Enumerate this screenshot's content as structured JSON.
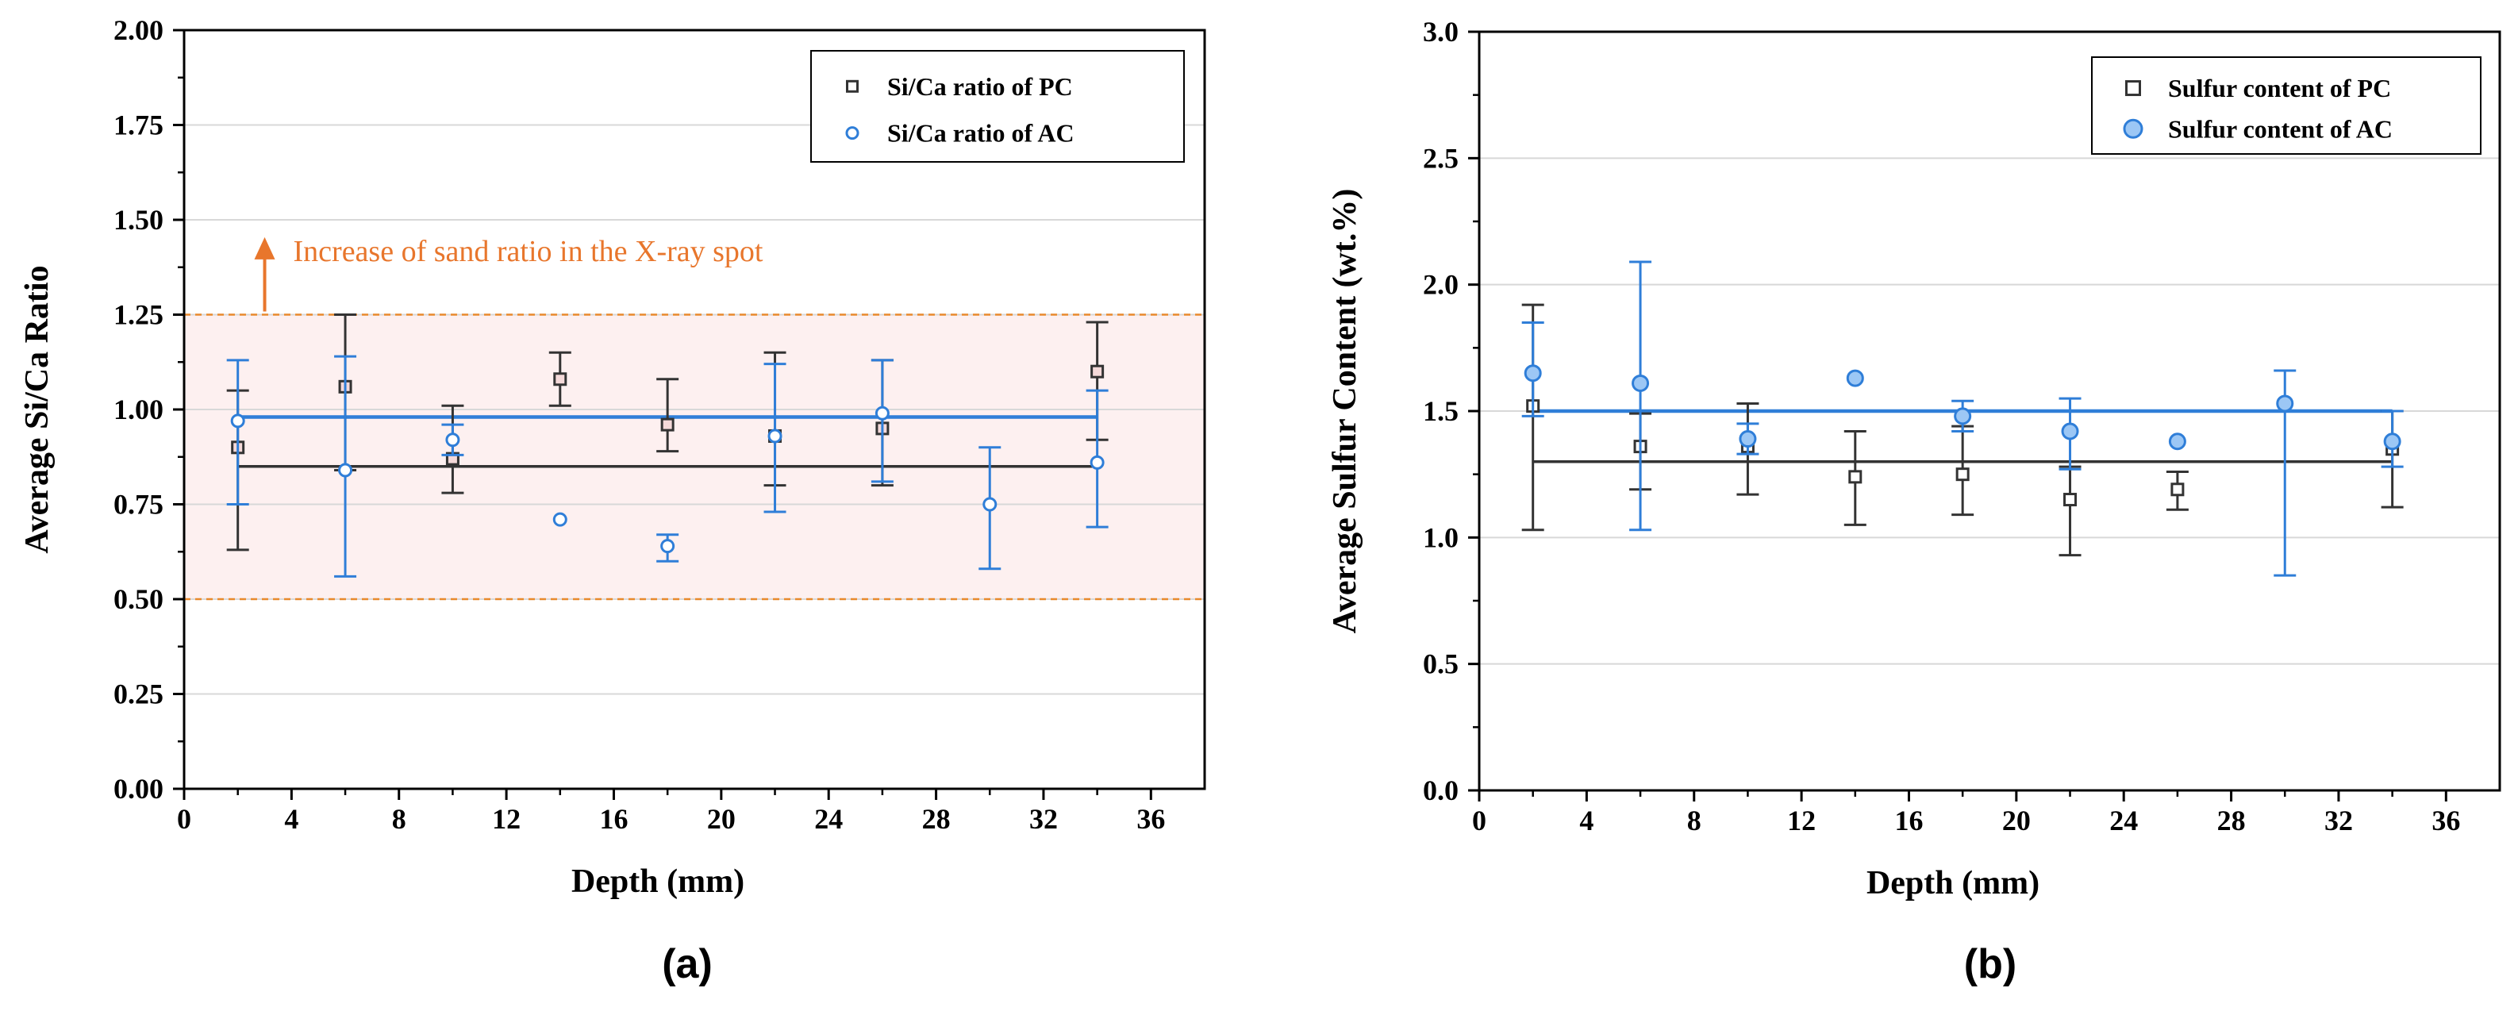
{
  "colors": {
    "pc": "#333333",
    "ac": "#2f7ed8",
    "band_fill": "#fdf0f0",
    "band_line": "#e8892c",
    "annotation": "#e8762c",
    "grid": "#d8d8d8"
  },
  "chart_data": [
    {
      "type": "scatter",
      "panel_label": "(a)",
      "xlabel": "Depth (mm)",
      "ylabel": "Average Si/Ca Ratio",
      "xlim": [
        0,
        38
      ],
      "ylim": [
        0,
        2.0
      ],
      "xticks": [
        0,
        4,
        8,
        12,
        16,
        20,
        24,
        28,
        32,
        36
      ],
      "yticks": [
        0.0,
        0.25,
        0.5,
        0.75,
        1.0,
        1.25,
        1.5,
        1.75,
        2.0
      ],
      "ytick_labels": [
        "0.00",
        "0.25",
        "0.50",
        "0.75",
        "1.00",
        "1.25",
        "1.50",
        "1.75",
        "2.00"
      ],
      "grid": true,
      "legend_position": "top-right",
      "band": {
        "y_low": 0.5,
        "y_high": 1.25
      },
      "annotation": {
        "text": "Increase of sand ratio in the X-ray spot",
        "arrow_x": 3,
        "y_from": 1.25,
        "y_to": 1.45
      },
      "series": [
        {
          "name": "Si/Ca ratio of PC",
          "marker": "square",
          "color_key": "pc",
          "mean_line": 0.85,
          "points": [
            {
              "x": 2,
              "y": 0.9,
              "lo": 0.63,
              "hi": 1.05
            },
            {
              "x": 6,
              "y": 1.06,
              "lo": 0.84,
              "hi": 1.25
            },
            {
              "x": 10,
              "y": 0.87,
              "lo": 0.78,
              "hi": 1.01
            },
            {
              "x": 14,
              "y": 1.08,
              "lo": 1.01,
              "hi": 1.15
            },
            {
              "x": 18,
              "y": 0.96,
              "lo": 0.89,
              "hi": 1.08
            },
            {
              "x": 22,
              "y": 0.93,
              "lo": 0.8,
              "hi": 1.15
            },
            {
              "x": 26,
              "y": 0.95,
              "lo": 0.8,
              "hi": 1.13
            },
            {
              "x": 34,
              "y": 1.1,
              "lo": 0.92,
              "hi": 1.23
            }
          ]
        },
        {
          "name": "Si/Ca ratio of AC",
          "marker": "circle",
          "color_key": "ac",
          "mean_line": 0.98,
          "points": [
            {
              "x": 2,
              "y": 0.97,
              "lo": 0.75,
              "hi": 1.13
            },
            {
              "x": 6,
              "y": 0.84,
              "lo": 0.56,
              "hi": 1.14
            },
            {
              "x": 10,
              "y": 0.92,
              "lo": 0.88,
              "hi": 0.96
            },
            {
              "x": 14,
              "y": 0.71,
              "lo": 0.71,
              "hi": 0.71
            },
            {
              "x": 18,
              "y": 0.64,
              "lo": 0.6,
              "hi": 0.67
            },
            {
              "x": 22,
              "y": 0.93,
              "lo": 0.73,
              "hi": 1.12
            },
            {
              "x": 26,
              "y": 0.99,
              "lo": 0.81,
              "hi": 1.13
            },
            {
              "x": 30,
              "y": 0.75,
              "lo": 0.58,
              "hi": 0.9
            },
            {
              "x": 34,
              "y": 0.86,
              "lo": 0.69,
              "hi": 1.05
            }
          ]
        }
      ]
    },
    {
      "type": "scatter",
      "panel_label": "(b)",
      "xlabel": "Depth (mm)",
      "ylabel": "Average Sulfur Content (wt.%)",
      "xlim": [
        0,
        38
      ],
      "ylim": [
        0,
        3.0
      ],
      "xticks": [
        0,
        4,
        8,
        12,
        16,
        20,
        24,
        28,
        32,
        36
      ],
      "yticks": [
        0.0,
        0.5,
        1.0,
        1.5,
        2.0,
        2.5,
        3.0
      ],
      "ytick_labels": [
        "0.0",
        "0.5",
        "1.0",
        "1.5",
        "2.0",
        "2.5",
        "3.0"
      ],
      "grid": true,
      "legend_position": "top-right",
      "series": [
        {
          "name": "Sulfur content of PC",
          "marker": "square",
          "color_key": "pc",
          "mean_line": 1.3,
          "points": [
            {
              "x": 2,
              "y": 1.52,
              "lo": 1.03,
              "hi": 1.92
            },
            {
              "x": 6,
              "y": 1.36,
              "lo": 1.19,
              "hi": 1.49
            },
            {
              "x": 10,
              "y": 1.36,
              "lo": 1.17,
              "hi": 1.53
            },
            {
              "x": 14,
              "y": 1.24,
              "lo": 1.05,
              "hi": 1.42
            },
            {
              "x": 18,
              "y": 1.25,
              "lo": 1.09,
              "hi": 1.44
            },
            {
              "x": 22,
              "y": 1.15,
              "lo": 0.93,
              "hi": 1.28
            },
            {
              "x": 26,
              "y": 1.19,
              "lo": 1.11,
              "hi": 1.26
            },
            {
              "x": 34,
              "y": 1.35,
              "lo": 1.12,
              "hi": 1.5
            }
          ]
        },
        {
          "name": "Sulfur content of AC",
          "marker": "circle",
          "color_key": "ac",
          "mean_line": 1.5,
          "points": [
            {
              "x": 2,
              "y": 1.65,
              "lo": 1.48,
              "hi": 1.85
            },
            {
              "x": 6,
              "y": 1.61,
              "lo": 1.03,
              "hi": 2.09
            },
            {
              "x": 10,
              "y": 1.39,
              "lo": 1.33,
              "hi": 1.45
            },
            {
              "x": 14,
              "y": 1.63,
              "lo": 1.63,
              "hi": 1.63
            },
            {
              "x": 18,
              "y": 1.48,
              "lo": 1.42,
              "hi": 1.54
            },
            {
              "x": 22,
              "y": 1.42,
              "lo": 1.27,
              "hi": 1.55
            },
            {
              "x": 26,
              "y": 1.38,
              "lo": 1.38,
              "hi": 1.38
            },
            {
              "x": 30,
              "y": 1.53,
              "lo": 0.85,
              "hi": 1.66
            },
            {
              "x": 34,
              "y": 1.38,
              "lo": 1.28,
              "hi": 1.5
            }
          ]
        }
      ]
    }
  ]
}
